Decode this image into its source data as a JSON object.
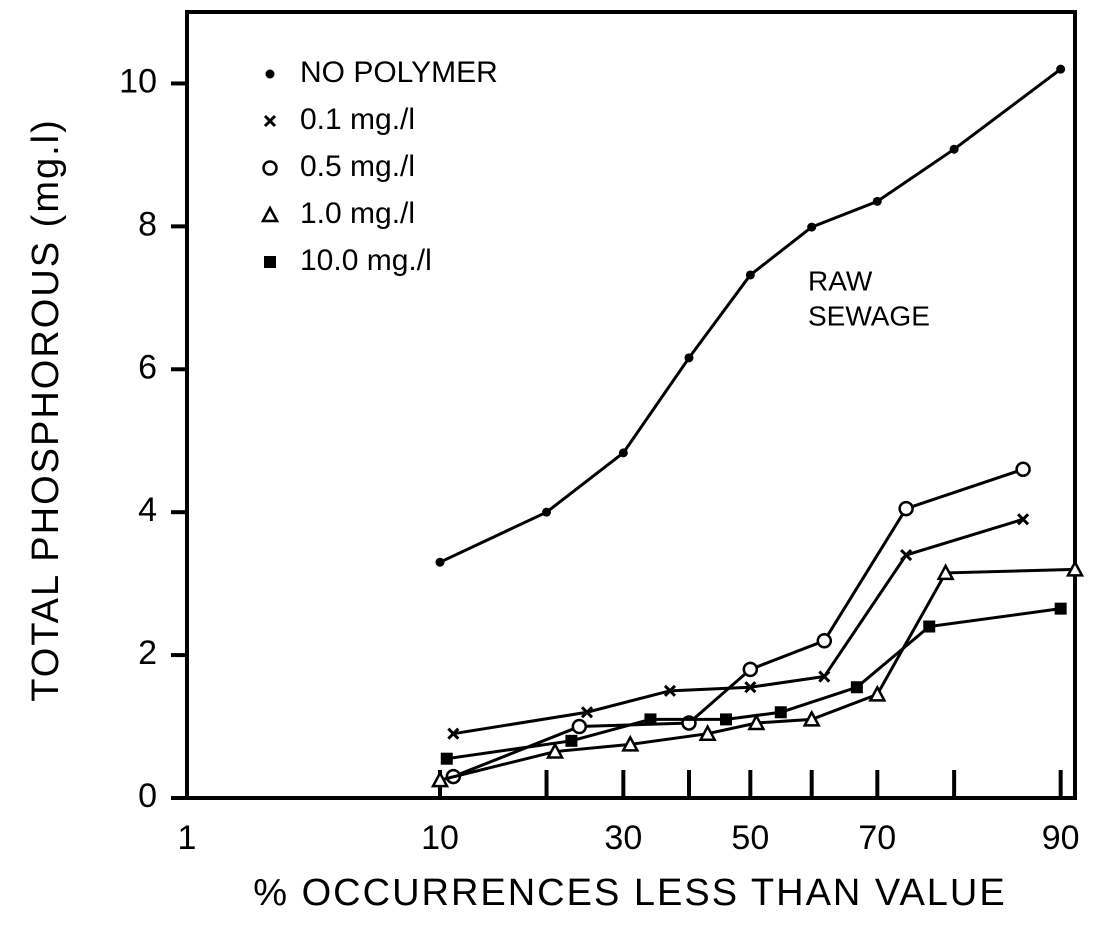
{
  "chart_data": {
    "type": "line",
    "xlabel": "% OCCURRENCES LESS THAN VALUE",
    "ylabel": "TOTAL PHOSPHOROUS (mg.l)",
    "xscale": "probability",
    "xlim": [
      1,
      91
    ],
    "xticks": [
      1,
      10,
      30,
      50,
      70,
      90
    ],
    "xminor_ticks": [
      20,
      40,
      60,
      80
    ],
    "ylim": [
      0,
      11
    ],
    "yticks": [
      0,
      2,
      4,
      6,
      8,
      10
    ],
    "annotations": [
      "RAW",
      "SEWAGE"
    ],
    "legend": "upper left",
    "series": [
      {
        "name": "NO POLYMER",
        "color": "#000000",
        "marker": "dot",
        "x": [
          10,
          20,
          30,
          40,
          50,
          60,
          70,
          80,
          90
        ],
        "values": [
          3.3,
          4.0,
          4.83,
          6.16,
          7.32,
          7.99,
          8.35,
          9.08,
          10.2
        ]
      },
      {
        "name": "0.1 mg./l",
        "color": "#000000",
        "marker": "x",
        "x": [
          11,
          25,
          37,
          50,
          62,
          74,
          87
        ],
        "values": [
          0.9,
          1.2,
          1.5,
          1.55,
          1.7,
          3.4,
          3.9
        ]
      },
      {
        "name": "0.5 mg./l",
        "color": "#000000",
        "marker": "circle",
        "x": [
          11,
          24,
          40,
          50,
          62,
          74,
          87
        ],
        "values": [
          0.3,
          1.0,
          1.05,
          1.8,
          2.2,
          4.05,
          4.6
        ]
      },
      {
        "name": "1.0 mg./l",
        "color": "#000000",
        "marker": "triangle",
        "x": [
          10,
          21,
          31,
          43,
          51,
          60,
          70,
          79,
          91
        ],
        "values": [
          0.25,
          0.65,
          0.75,
          0.9,
          1.05,
          1.1,
          1.45,
          3.15,
          3.2
        ]
      },
      {
        "name": "10.0 mg./l",
        "color": "#000000",
        "marker": "square",
        "x": [
          10.5,
          23,
          34,
          46,
          55,
          67,
          77,
          90
        ],
        "values": [
          0.55,
          0.8,
          1.1,
          1.1,
          1.2,
          1.55,
          2.4,
          2.65
        ]
      }
    ]
  }
}
